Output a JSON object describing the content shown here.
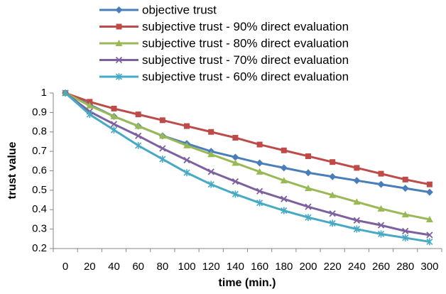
{
  "chart_data": {
    "type": "line",
    "x_label": "time (min.)",
    "y_label": "trust value",
    "categories": [
      0,
      20,
      40,
      60,
      80,
      100,
      120,
      140,
      160,
      180,
      200,
      220,
      240,
      260,
      280,
      300
    ],
    "ylim": [
      0.2,
      1
    ],
    "yticks": [
      0.2,
      0.3,
      0.4,
      0.5,
      0.6,
      0.7,
      0.8,
      0.9,
      1
    ],
    "grid": false,
    "legend": "top",
    "series": [
      {
        "name": "objective trust",
        "color": "#4a7ebb",
        "marker": "diamond",
        "values": [
          1.0,
          0.94,
          0.88,
          0.83,
          0.78,
          0.74,
          0.7,
          0.67,
          0.64,
          0.615,
          0.59,
          0.57,
          0.55,
          0.53,
          0.51,
          0.49
        ]
      },
      {
        "name": "subjective trust - 90% direct evaluation",
        "color": "#be4b48",
        "marker": "square",
        "values": [
          1.0,
          0.955,
          0.92,
          0.89,
          0.86,
          0.83,
          0.8,
          0.77,
          0.735,
          0.705,
          0.675,
          0.645,
          0.615,
          0.585,
          0.555,
          0.53
        ]
      },
      {
        "name": "subjective trust - 80% direct evaluation",
        "color": "#98b954",
        "marker": "triangle",
        "values": [
          1.0,
          0.935,
          0.88,
          0.83,
          0.78,
          0.73,
          0.685,
          0.64,
          0.595,
          0.55,
          0.51,
          0.475,
          0.44,
          0.405,
          0.375,
          0.35
        ]
      },
      {
        "name": "subjective trust - 70% direct evaluation",
        "color": "#7d60a0",
        "marker": "x",
        "values": [
          1.0,
          0.905,
          0.84,
          0.78,
          0.715,
          0.655,
          0.595,
          0.545,
          0.495,
          0.455,
          0.415,
          0.38,
          0.345,
          0.32,
          0.29,
          0.27
        ]
      },
      {
        "name": "subjective trust - 60% direct evaluation",
        "color": "#46aac5",
        "marker": "star",
        "values": [
          1.0,
          0.89,
          0.81,
          0.73,
          0.66,
          0.59,
          0.53,
          0.48,
          0.435,
          0.395,
          0.36,
          0.33,
          0.3,
          0.275,
          0.255,
          0.235
        ]
      }
    ]
  }
}
